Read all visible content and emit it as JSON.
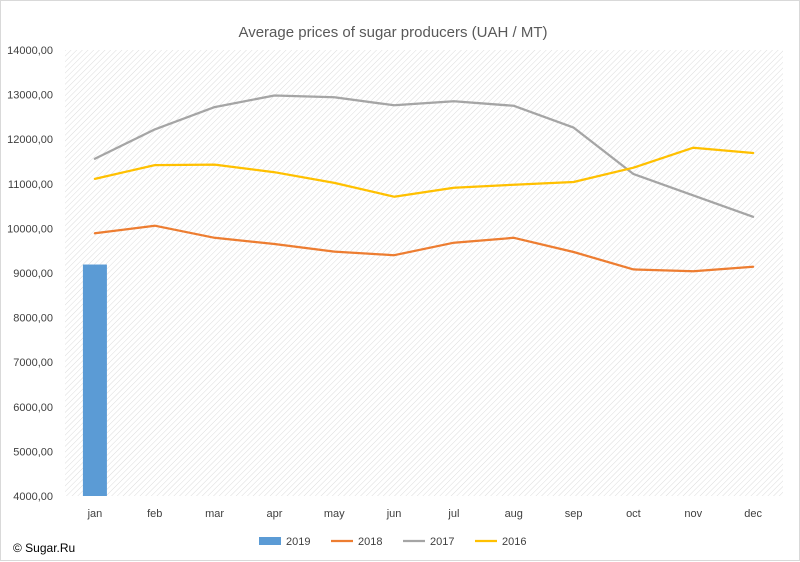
{
  "chart_data": {
    "type": "line",
    "title": "Average prices of sugar producers (UAH / MT)",
    "xlabel": "",
    "ylabel": "",
    "categories": [
      "jan",
      "feb",
      "mar",
      "apr",
      "may",
      "jun",
      "jul",
      "aug",
      "sep",
      "oct",
      "nov",
      "dec"
    ],
    "ylim": [
      4000,
      14000
    ],
    "yticks": [
      "4000,00",
      "5000,00",
      "6000,00",
      "7000,00",
      "8000,00",
      "9000,00",
      "10000,00",
      "11000,00",
      "12000,00",
      "13000,00",
      "14000,00"
    ],
    "grid": "diagonal-hatch",
    "legend": "bottom",
    "series": [
      {
        "name": "2019",
        "kind": "bar",
        "color": "#5b9bd5",
        "values": [
          9190,
          null,
          null,
          null,
          null,
          null,
          null,
          null,
          null,
          null,
          null,
          null
        ]
      },
      {
        "name": "2018",
        "kind": "line",
        "color": "#ed7d31",
        "values": [
          9890,
          10060,
          9790,
          9650,
          9480,
          9400,
          9680,
          9790,
          9470,
          9080,
          9040,
          9140
        ]
      },
      {
        "name": "2017",
        "kind": "line",
        "color": "#a5a5a5",
        "values": [
          11560,
          12220,
          12720,
          12980,
          12940,
          12760,
          12850,
          12750,
          12260,
          11220,
          10740,
          10260
        ]
      },
      {
        "name": "2016",
        "kind": "line",
        "color": "#ffc000",
        "values": [
          11110,
          11420,
          11430,
          11260,
          11020,
          10710,
          10910,
          10980,
          11040,
          11360,
          11810,
          11690
        ]
      }
    ]
  },
  "footer": {
    "credit": "© Sugar.Ru"
  }
}
